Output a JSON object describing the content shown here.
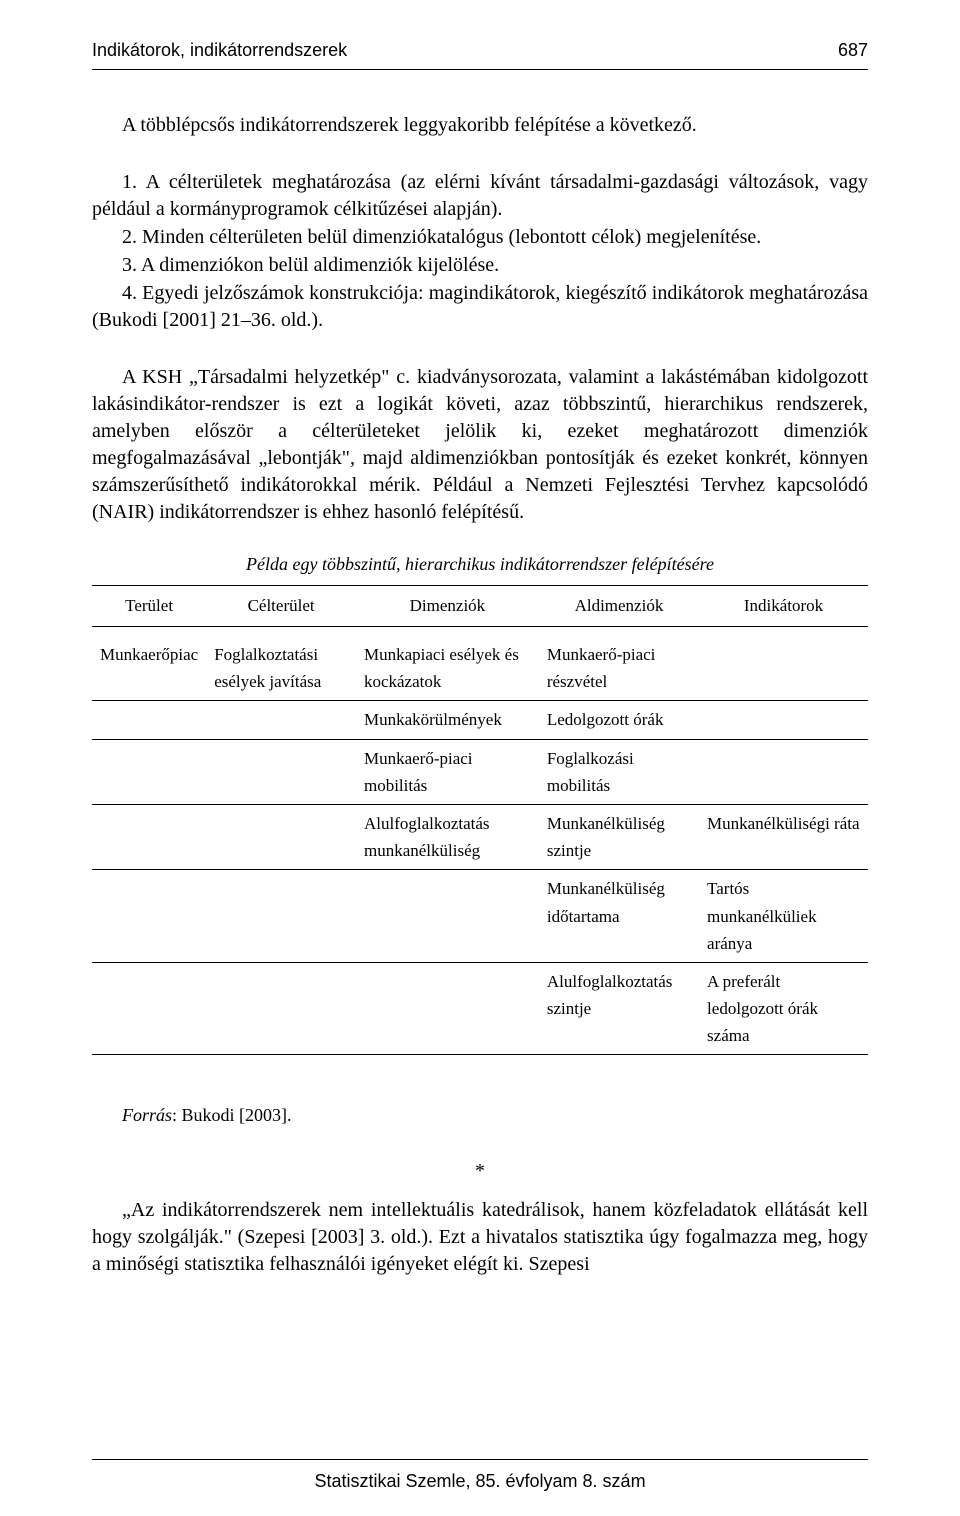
{
  "header": {
    "running_title": "Indikátorok, indikátorrendszerek",
    "page_number": "687"
  },
  "intro": "A többlépcsős indikátorrendszerek leggyakoribb felépítése a következő.",
  "list": {
    "i1": "1. A célterületek meghatározása (az elérni kívánt társadalmi-gazdasági változások, vagy például a kormányprogramok célkitűzései alapján).",
    "i2": "2. Minden célterületen belül dimenziókatalógus (lebontott célok) megjelenítése.",
    "i3": "3. A dimenziókon belül aldimenziók kijelölése.",
    "i4": "4. Egyedi jelzőszámok konstrukciója: magindikátorok, kiegészítő indikátorok meghatározása (Bukodi [2001] 21–36. old.)."
  },
  "body": "A KSH „Társadalmi helyzetkép\" c. kiadványsorozata, valamint a lakástémában kidolgozott lakásindikátor-rendszer is ezt a logikát követi, azaz többszintű, hierarchikus rendszerek, amelyben először a célterületeket jelölik ki, ezeket meghatározott dimenziók megfogalmazásával „lebontják\", majd aldimenziókban pontosítják és ezeket konkrét, könnyen számszerűsíthető indikátorokkal mérik. Például a Nemzeti Fejlesztési Tervhez kapcsolódó (NAIR) indikátorrendszer is ehhez hasonló felépítésű.",
  "table": {
    "caption": "Példa egy többszintű, hierarchikus indikátorrendszer felépítésére",
    "headers": {
      "c1": "Terület",
      "c2": "Célterület",
      "c3": "Dimenziók",
      "c4": "Aldimenziók",
      "c5": "Indikátorok"
    },
    "rows": {
      "r0": {
        "c1": "Munkaerőpiac",
        "c2": "Foglalkoztatási esélyek javítása",
        "c3": "Munkapiaci esélyek és kockázatok",
        "c4": "Munkaerő-piaci részvétel",
        "c5": ""
      },
      "r1": {
        "c1": "",
        "c2": "",
        "c3": "Munkakörülmények",
        "c4": "Ledolgozott órák",
        "c5": ""
      },
      "r2": {
        "c1": "",
        "c2": "",
        "c3": "Munkaerő-piaci mobilitás",
        "c4": "Foglalkozási mobilitás",
        "c5": ""
      },
      "r3": {
        "c1": "",
        "c2": "",
        "c3": "Alulfoglalkoztatás munkanélküliség",
        "c4": "Munkanélküliség szintje",
        "c5": "Munkanélküliségi ráta"
      },
      "r4": {
        "c1": "",
        "c2": "",
        "c3": "",
        "c4": "Munkanélküliség időtartama",
        "c5": "Tartós munkanélküliek aránya"
      },
      "r5": {
        "c1": "",
        "c2": "",
        "c3": "",
        "c4": "Alulfoglalkoztatás szintje",
        "c5": "A preferált ledolgozott órák száma"
      }
    }
  },
  "source": {
    "label": "Forrás",
    "text": ": Bukodi [2003]."
  },
  "asterisk": "*",
  "closing": "„Az indikátorrendszerek nem intellektuális katedrálisok, hanem közfeladatok ellátását kell hogy szolgálják.\" (Szepesi [2003] 3. old.). Ezt a hivatalos statisztika úgy fogalmazza meg, hogy a minőségi statisztika felhasználói igényeket elégít ki. Szepesi",
  "footer": "Statisztikai Szemle, 85. évfolyam 8. szám"
}
